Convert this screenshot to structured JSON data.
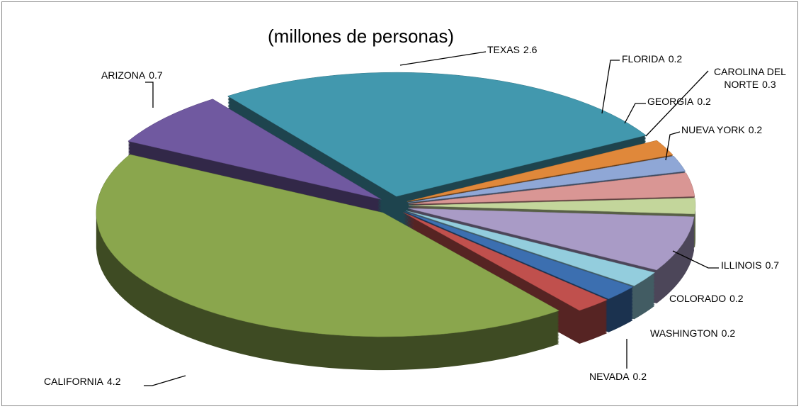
{
  "chart_data": {
    "type": "pie",
    "title": "(millones de personas)",
    "categories": [
      "TEXAS",
      "FLORIDA",
      "GEORGIA",
      "CAROLINA DEL NORTE",
      "NUEVA YORK",
      "ILLINOIS",
      "COLORADO",
      "WASHINGTON",
      "NEVADA",
      "CALIFORNIA",
      "ARIZONA"
    ],
    "values": [
      2.6,
      0.2,
      0.2,
      0.3,
      0.2,
      0.7,
      0.2,
      0.2,
      0.2,
      4.2,
      0.7
    ],
    "colors": [
      "#4298ae",
      "#e0883a",
      "#8fa7d6",
      "#d99694",
      "#c3d69b",
      "#a99bc6",
      "#93cddd",
      "#3c6fb0",
      "#c0504d",
      "#8aa64d",
      "#7059a0"
    ]
  }
}
